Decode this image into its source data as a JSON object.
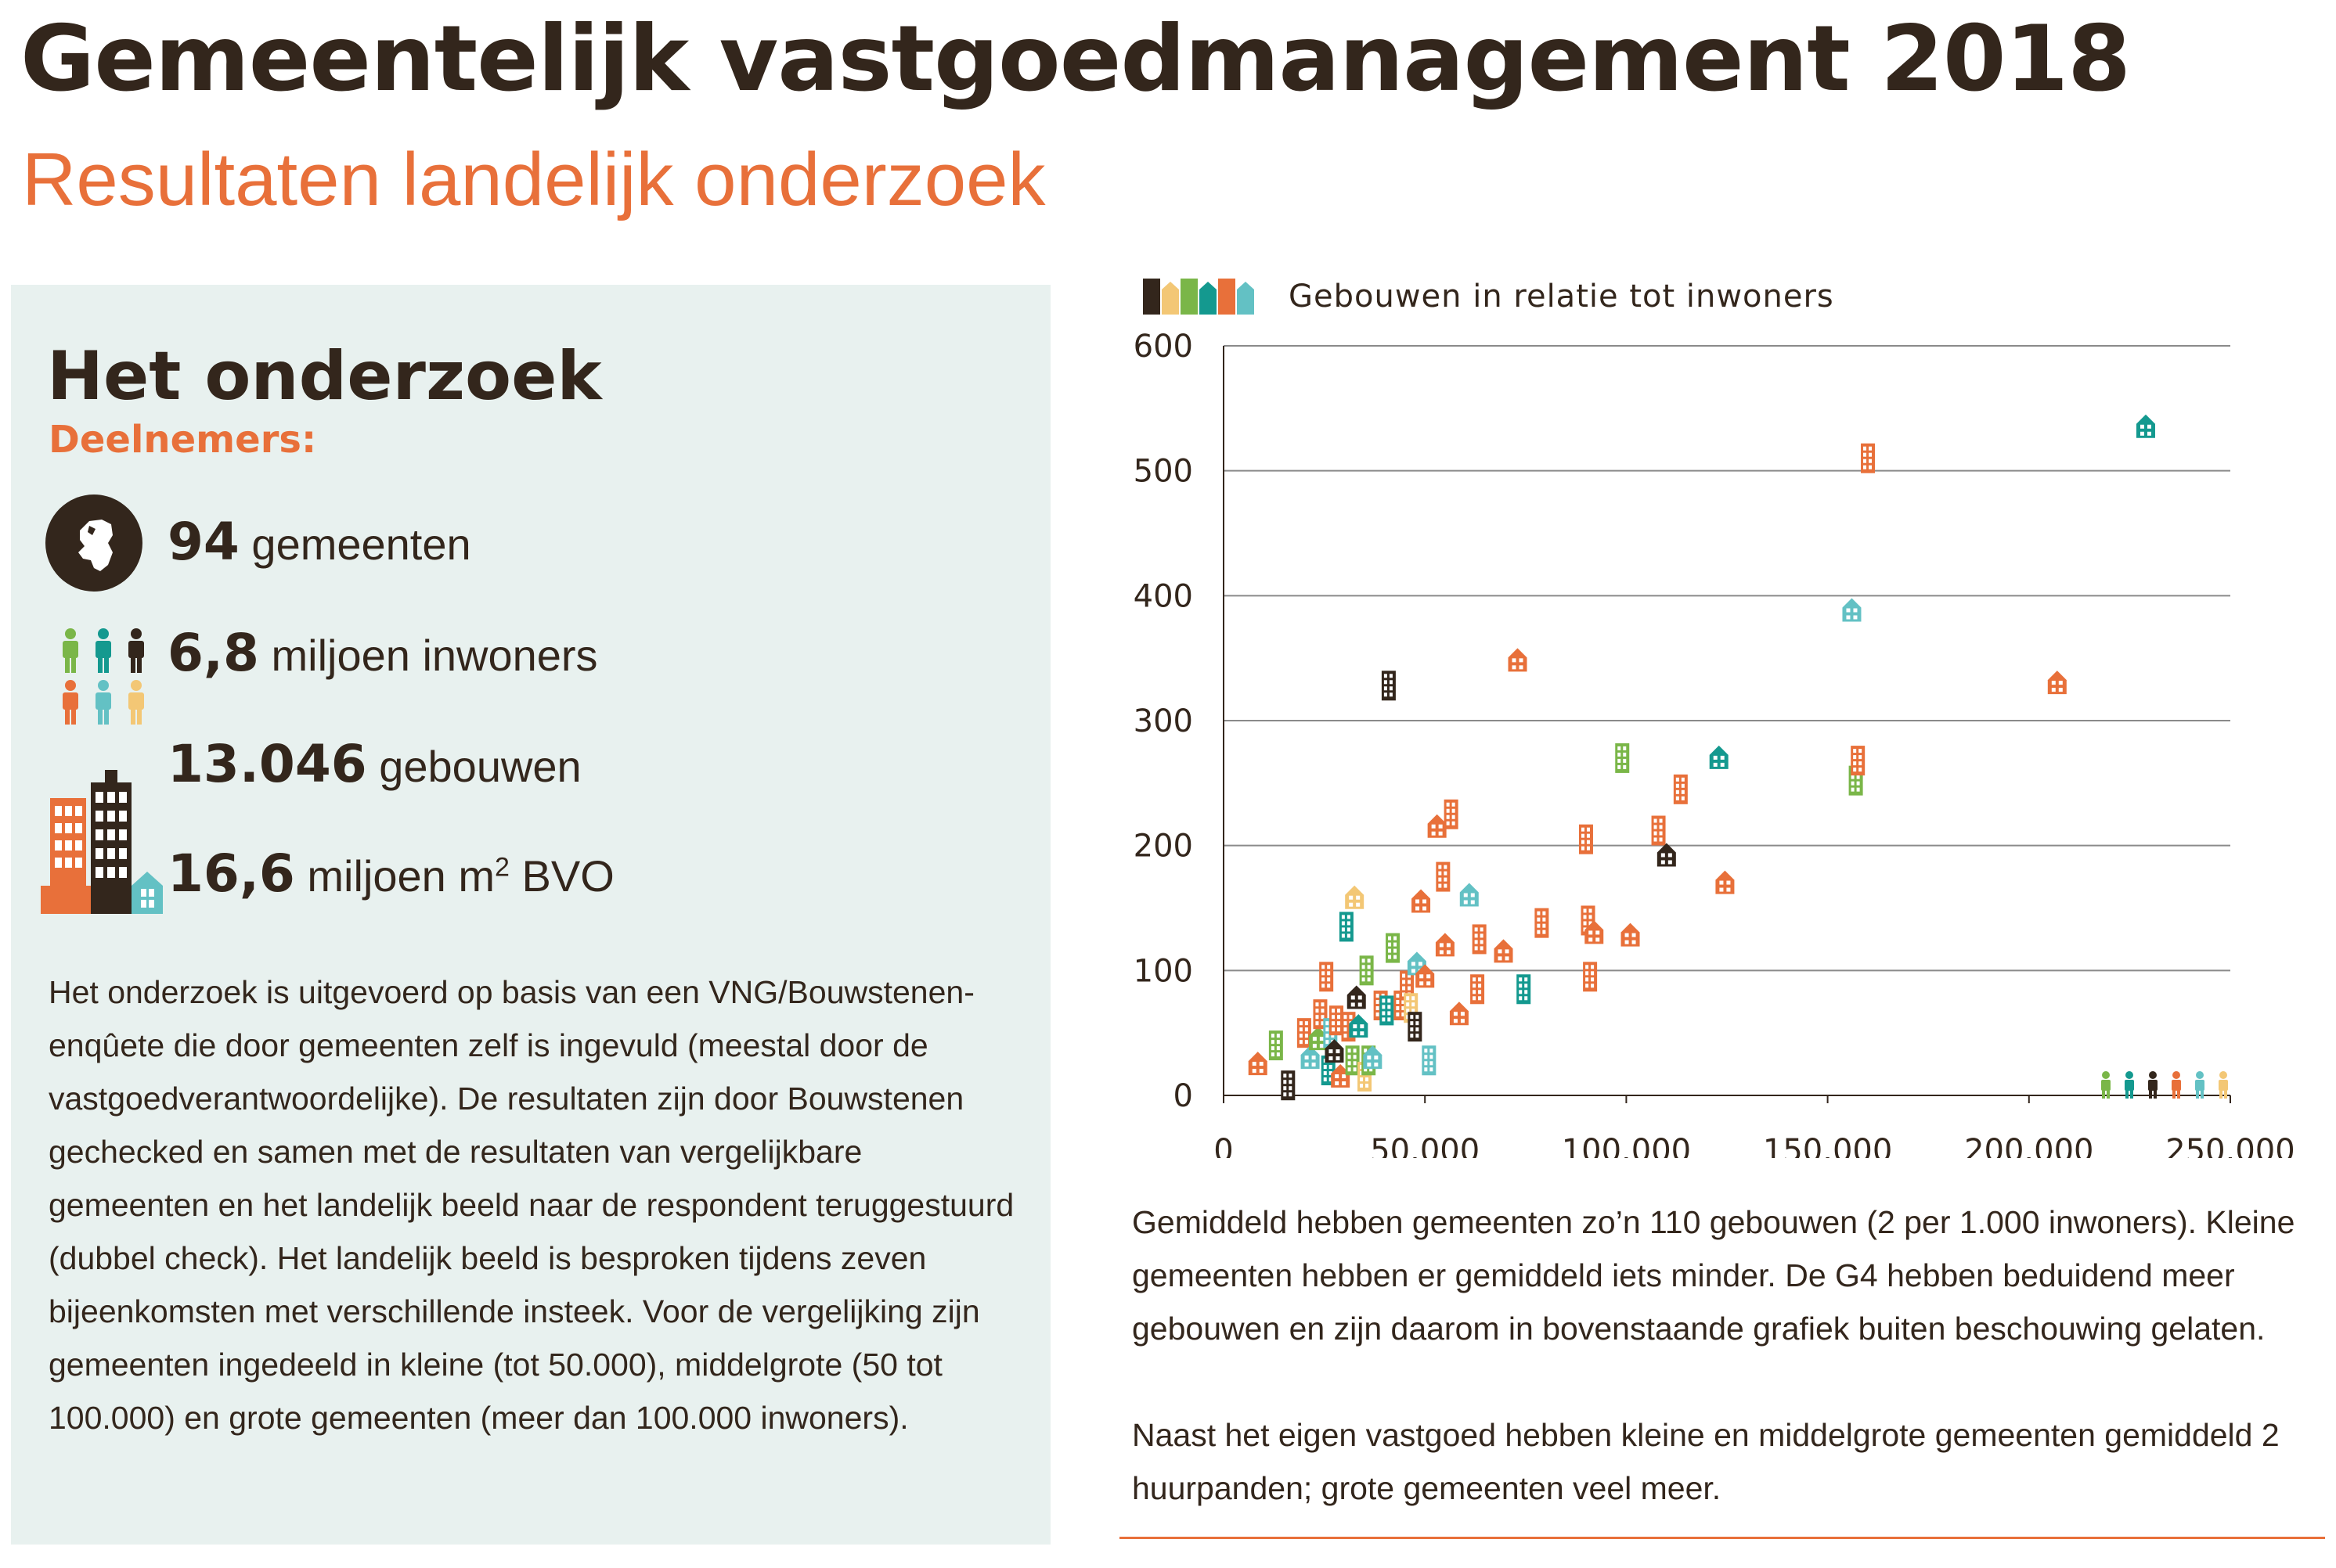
{
  "header": {
    "title": "Gemeentelijk vastgoedmanagement 2018",
    "subtitle": "Resultaten landelijk onderzoek"
  },
  "panel": {
    "heading": "Het onderzoek",
    "kicker": "Deelnemers:",
    "stats": [
      {
        "num": "94",
        "label": "gemeenten",
        "icon": "netherlands-map-icon"
      },
      {
        "num": "6,8",
        "label": "miljoen inwoners",
        "icon": "people-icon"
      },
      {
        "num": "13.046",
        "label": "gebouwen",
        "icon": "buildings-icon"
      },
      {
        "num": "16,6",
        "label": "miljoen m",
        "sup": "2",
        "suffix": " BVO"
      }
    ],
    "body": "Het onderzoek is uitgevoerd op basis van een VNG/Bouwstenen-enqûete die door gemeenten zelf is ingevuld (meestal door de vastgoedverantwoordelijke). De resultaten zijn door Bouwstenen gechecked en samen met de resultaten van vergelijkbare gemeenten en het landelijk beeld naar de respondent teruggestuurd (dubbel check). Het landelijk beeld is besproken tijdens zeven bijeenkomsten met verschillende insteek. Voor de vergelijking zijn gemeenten ingedeeld in kleine (tot 50.000), middelgrote (50 tot 100.000) en grote gemeenten (meer dan 100.000 inwoners)."
  },
  "colors": {
    "dark": "#33261c",
    "orange": "#e8703a",
    "teal": "#14998f",
    "lightTeal": "#63c1c4",
    "green": "#7ab648",
    "yellow": "#f3c775"
  },
  "chart_data": {
    "type": "scatter",
    "title": "Gebouwen in relatie tot inwoners",
    "xlim": [
      0,
      250000
    ],
    "ylim": [
      0,
      600
    ],
    "x_ticks": [
      0,
      50000,
      100000,
      150000,
      200000,
      250000
    ],
    "x_tick_labels": [
      "0",
      "50.000",
      "100.000",
      "150.000",
      "200.000",
      "250.000"
    ],
    "y_ticks": [
      0,
      100,
      200,
      300,
      400,
      500,
      600
    ],
    "y_tick_labels": [
      "0",
      "100",
      "200",
      "300",
      "400",
      "500",
      "600"
    ],
    "grid": "horizontal",
    "points": [
      {
        "x": 8500,
        "y": 25,
        "shape": "house",
        "color": "orange"
      },
      {
        "x": 13000,
        "y": 40,
        "shape": "tower",
        "color": "green"
      },
      {
        "x": 16000,
        "y": 8,
        "shape": "tower",
        "color": "dark"
      },
      {
        "x": 20000,
        "y": 50,
        "shape": "tower",
        "color": "orange"
      },
      {
        "x": 21500,
        "y": 30,
        "shape": "house",
        "color": "lightTeal"
      },
      {
        "x": 23500,
        "y": 45,
        "shape": "house",
        "color": "green"
      },
      {
        "x": 24000,
        "y": 65,
        "shape": "tower",
        "color": "orange"
      },
      {
        "x": 25500,
        "y": 95,
        "shape": "tower",
        "color": "orange"
      },
      {
        "x": 26000,
        "y": 20,
        "shape": "tower",
        "color": "teal"
      },
      {
        "x": 26500,
        "y": 50,
        "shape": "tower",
        "color": "lightTeal"
      },
      {
        "x": 27500,
        "y": 35,
        "shape": "house",
        "color": "dark"
      },
      {
        "x": 28000,
        "y": 60,
        "shape": "tower",
        "color": "orange"
      },
      {
        "x": 29000,
        "y": 15,
        "shape": "house",
        "color": "orange"
      },
      {
        "x": 30500,
        "y": 135,
        "shape": "tower",
        "color": "teal"
      },
      {
        "x": 31000,
        "y": 55,
        "shape": "tower",
        "color": "orange"
      },
      {
        "x": 32000,
        "y": 28,
        "shape": "tower",
        "color": "green"
      },
      {
        "x": 32500,
        "y": 158,
        "shape": "house",
        "color": "yellow"
      },
      {
        "x": 33000,
        "y": 78,
        "shape": "house",
        "color": "dark"
      },
      {
        "x": 33500,
        "y": 55,
        "shape": "house",
        "color": "teal"
      },
      {
        "x": 35000,
        "y": 15,
        "shape": "tower",
        "color": "yellow"
      },
      {
        "x": 35500,
        "y": 100,
        "shape": "tower",
        "color": "green"
      },
      {
        "x": 36000,
        "y": 28,
        "shape": "tower",
        "color": "green"
      },
      {
        "x": 37000,
        "y": 30,
        "shape": "house",
        "color": "lightTeal"
      },
      {
        "x": 39000,
        "y": 72,
        "shape": "tower",
        "color": "orange"
      },
      {
        "x": 40500,
        "y": 68,
        "shape": "tower",
        "color": "teal"
      },
      {
        "x": 41000,
        "y": 328,
        "shape": "tower",
        "color": "dark"
      },
      {
        "x": 42000,
        "y": 118,
        "shape": "tower",
        "color": "green"
      },
      {
        "x": 44000,
        "y": 72,
        "shape": "tower",
        "color": "orange"
      },
      {
        "x": 45500,
        "y": 88,
        "shape": "tower",
        "color": "orange"
      },
      {
        "x": 46500,
        "y": 70,
        "shape": "tower",
        "color": "yellow"
      },
      {
        "x": 47500,
        "y": 55,
        "shape": "tower",
        "color": "dark"
      },
      {
        "x": 48000,
        "y": 105,
        "shape": "house",
        "color": "lightTeal"
      },
      {
        "x": 49000,
        "y": 155,
        "shape": "house",
        "color": "orange"
      },
      {
        "x": 50000,
        "y": 95,
        "shape": "house",
        "color": "orange"
      },
      {
        "x": 51000,
        "y": 28,
        "shape": "tower",
        "color": "lightTeal"
      },
      {
        "x": 53000,
        "y": 215,
        "shape": "house",
        "color": "orange"
      },
      {
        "x": 54500,
        "y": 175,
        "shape": "tower",
        "color": "orange"
      },
      {
        "x": 55000,
        "y": 120,
        "shape": "house",
        "color": "orange"
      },
      {
        "x": 56500,
        "y": 225,
        "shape": "tower",
        "color": "orange"
      },
      {
        "x": 58500,
        "y": 65,
        "shape": "house",
        "color": "orange"
      },
      {
        "x": 61000,
        "y": 160,
        "shape": "house",
        "color": "lightTeal"
      },
      {
        "x": 63000,
        "y": 85,
        "shape": "tower",
        "color": "orange"
      },
      {
        "x": 63500,
        "y": 125,
        "shape": "tower",
        "color": "orange"
      },
      {
        "x": 69500,
        "y": 115,
        "shape": "house",
        "color": "orange"
      },
      {
        "x": 73000,
        "y": 348,
        "shape": "house",
        "color": "orange"
      },
      {
        "x": 74500,
        "y": 85,
        "shape": "tower",
        "color": "teal"
      },
      {
        "x": 79000,
        "y": 138,
        "shape": "tower",
        "color": "orange"
      },
      {
        "x": 90000,
        "y": 205,
        "shape": "tower",
        "color": "orange"
      },
      {
        "x": 90500,
        "y": 140,
        "shape": "tower",
        "color": "orange"
      },
      {
        "x": 91000,
        "y": 95,
        "shape": "tower",
        "color": "orange"
      },
      {
        "x": 92000,
        "y": 130,
        "shape": "house",
        "color": "orange"
      },
      {
        "x": 99000,
        "y": 270,
        "shape": "tower",
        "color": "green"
      },
      {
        "x": 101000,
        "y": 128,
        "shape": "house",
        "color": "orange"
      },
      {
        "x": 108000,
        "y": 212,
        "shape": "tower",
        "color": "orange"
      },
      {
        "x": 110000,
        "y": 192,
        "shape": "house",
        "color": "dark"
      },
      {
        "x": 113500,
        "y": 245,
        "shape": "tower",
        "color": "orange"
      },
      {
        "x": 123000,
        "y": 270,
        "shape": "house",
        "color": "teal"
      },
      {
        "x": 124500,
        "y": 170,
        "shape": "house",
        "color": "orange"
      },
      {
        "x": 156000,
        "y": 388,
        "shape": "house",
        "color": "lightTeal"
      },
      {
        "x": 157000,
        "y": 252,
        "shape": "tower",
        "color": "green"
      },
      {
        "x": 157500,
        "y": 268,
        "shape": "tower",
        "color": "orange"
      },
      {
        "x": 160000,
        "y": 510,
        "shape": "tower",
        "color": "orange"
      },
      {
        "x": 207000,
        "y": 330,
        "shape": "house",
        "color": "orange"
      },
      {
        "x": 229000,
        "y": 535,
        "shape": "house",
        "color": "teal"
      }
    ]
  },
  "right": {
    "para1": "Gemiddeld hebben gemeenten zo’n 110 gebouwen (2 per 1.000 inwoners). Kleine gemeenten hebben er gemiddeld iets minder. De G4 hebben beduidend meer gebouwen en zijn daarom in bovenstaande grafiek buiten beschouwing gelaten.",
    "para2": "Naast het eigen vastgoed hebben kleine en middelgrote gemeenten gemiddeld 2 huurpanden; grote gemeenten veel meer."
  }
}
